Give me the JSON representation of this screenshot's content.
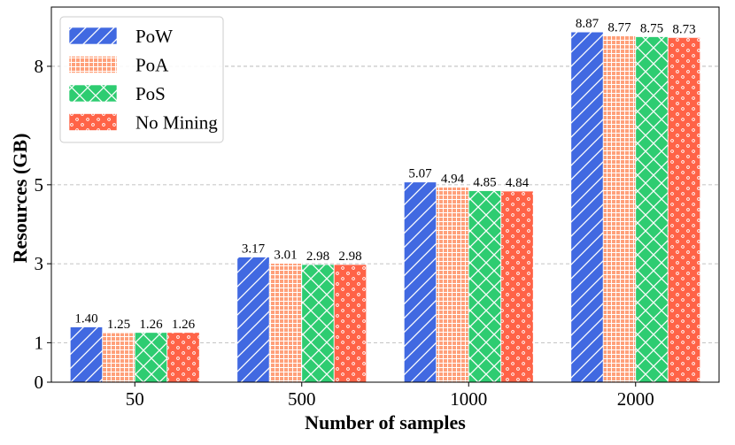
{
  "chart_data": {
    "type": "bar",
    "title": "",
    "xlabel": "Number of samples",
    "ylabel": "Resources (GB)",
    "categories": [
      "50",
      "500",
      "1000",
      "2000"
    ],
    "ylim": [
      0,
      9.5
    ],
    "yticks": [
      0,
      1,
      3,
      5,
      8
    ],
    "grid": "horizontal dashed",
    "legend_position": "top-left",
    "series": [
      {
        "name": "PoW",
        "values": [
          1.4,
          3.17,
          5.07,
          8.87
        ],
        "labels": [
          "1.40",
          "3.17",
          "5.07",
          "8.87"
        ],
        "color": "#4169E1",
        "hatch": "diagonal"
      },
      {
        "name": "PoA",
        "values": [
          1.25,
          3.01,
          4.94,
          8.77
        ],
        "labels": [
          "1.25",
          "3.01",
          "4.94",
          "8.77"
        ],
        "color": "#FFA07A",
        "hatch": "grid"
      },
      {
        "name": "PoS",
        "values": [
          1.26,
          2.98,
          4.85,
          8.75
        ],
        "labels": [
          "1.26",
          "2.98",
          "4.85",
          "8.75"
        ],
        "color": "#2ECC71",
        "hatch": "crosshatch"
      },
      {
        "name": "No Mining",
        "values": [
          1.26,
          2.98,
          4.84,
          8.73
        ],
        "labels": [
          "1.26",
          "2.98",
          "4.84",
          "8.73"
        ],
        "color": "#FF6347",
        "hatch": "dots"
      }
    ]
  }
}
